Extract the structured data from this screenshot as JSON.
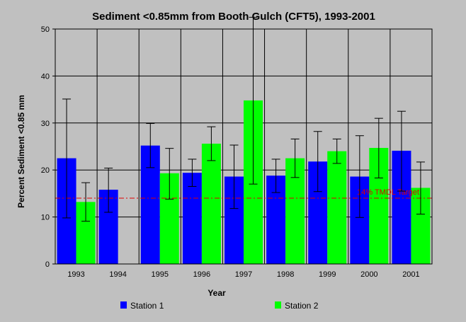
{
  "chart_data": {
    "type": "bar",
    "title": "Sediment <0.85mm from Booth Gulch (CFT5), 1993-2001",
    "xlabel": "Year",
    "ylabel": "Percent Sediment <0.85 mm",
    "ylim": [
      0,
      50
    ],
    "yticks": [
      0,
      10,
      20,
      30,
      40,
      50
    ],
    "categories": [
      "1993",
      "1994",
      "1995",
      "1996",
      "1997",
      "1998",
      "1999",
      "2000",
      "2001"
    ],
    "series": [
      {
        "name": "Station 1",
        "color": "#0000ff",
        "values": [
          22.5,
          15.8,
          25.2,
          19.4,
          18.6,
          18.8,
          21.8,
          18.6,
          24.1
        ],
        "err_low": [
          9.8,
          11.0,
          20.5,
          16.5,
          11.8,
          15.2,
          15.4,
          9.9,
          15.5
        ],
        "err_high": [
          35.1,
          20.4,
          29.9,
          22.3,
          25.3,
          22.3,
          28.2,
          27.3,
          32.5
        ]
      },
      {
        "name": "Station 2",
        "color": "#00ff00",
        "values": [
          13.2,
          null,
          19.3,
          25.6,
          34.8,
          22.5,
          24.0,
          24.7,
          16.2
        ],
        "err_low": [
          9.1,
          null,
          13.8,
          22.0,
          17.0,
          18.4,
          21.4,
          18.3,
          10.6
        ],
        "err_high": [
          17.3,
          null,
          24.6,
          29.2,
          52.5,
          26.6,
          26.6,
          31.0,
          21.7
        ]
      }
    ],
    "reference_line": {
      "value": 14,
      "label": "14% TMDL Target",
      "color": "#e00000"
    },
    "grid": true,
    "legend_position": "bottom"
  }
}
